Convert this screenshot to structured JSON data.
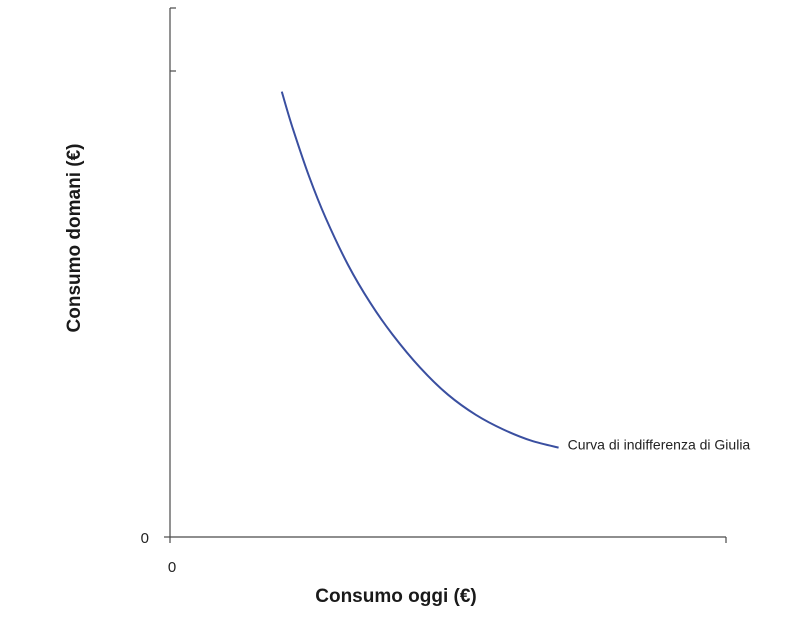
{
  "chart_data": {
    "type": "line",
    "title": "",
    "xlabel": "Consumo oggi (€)",
    "ylabel": "Consumo domani (€)",
    "xlim": [
      0,
      100
    ],
    "ylim": [
      0,
      100
    ],
    "x_tick_labels": [
      "0"
    ],
    "y_tick_labels": [
      "0"
    ],
    "grid": false,
    "series": [
      {
        "name": "Curva di indifferenza di Giulia",
        "color": "#3a4fa0",
        "x": [
          20.1,
          22,
          25,
          28,
          32,
          36,
          40,
          45,
          50,
          55,
          60,
          65,
          69.9
        ],
        "y": [
          84.2,
          77.5,
          68.2,
          60.3,
          51.5,
          44.3,
          38.3,
          32.0,
          26.9,
          23.1,
          20.3,
          18.2,
          16.9
        ]
      }
    ]
  }
}
